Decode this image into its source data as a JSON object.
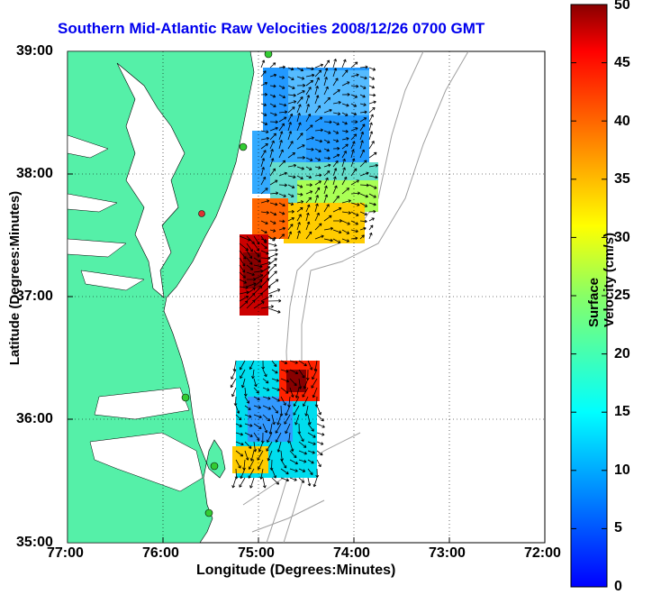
{
  "title": "Southern Mid-Atlantic Raw Velocities 2008/12/26 0700 GMT",
  "map": {
    "lon_ticks": [
      "77:00",
      "76:00",
      "75:00",
      "74:00",
      "73:00",
      "72:00"
    ],
    "lat_ticks": [
      "39:00",
      "38:00",
      "37:00",
      "36:00",
      "35:00"
    ],
    "xlabel": "Longitude (Degrees:Minutes)",
    "ylabel": "Latitude (Degrees:Minutes)",
    "land_color": "#55f0a8",
    "contour_color": "#a0a0a0",
    "gridlines": true
  },
  "colorbar": {
    "label": "Surface Velocity (cm/s)",
    "min": 0,
    "max": 50,
    "ticks": [
      "50",
      "45",
      "40",
      "35",
      "30",
      "25",
      "20",
      "15",
      "10",
      "5",
      "0"
    ],
    "colormap": "jet"
  },
  "stations": [
    {
      "color": "#33cc33"
    },
    {
      "color": "#33cc33"
    },
    {
      "color": "#dd3333"
    },
    {
      "color": "#33cc33"
    },
    {
      "color": "#33cc33"
    },
    {
      "color": "#33cc33"
    }
  ]
}
